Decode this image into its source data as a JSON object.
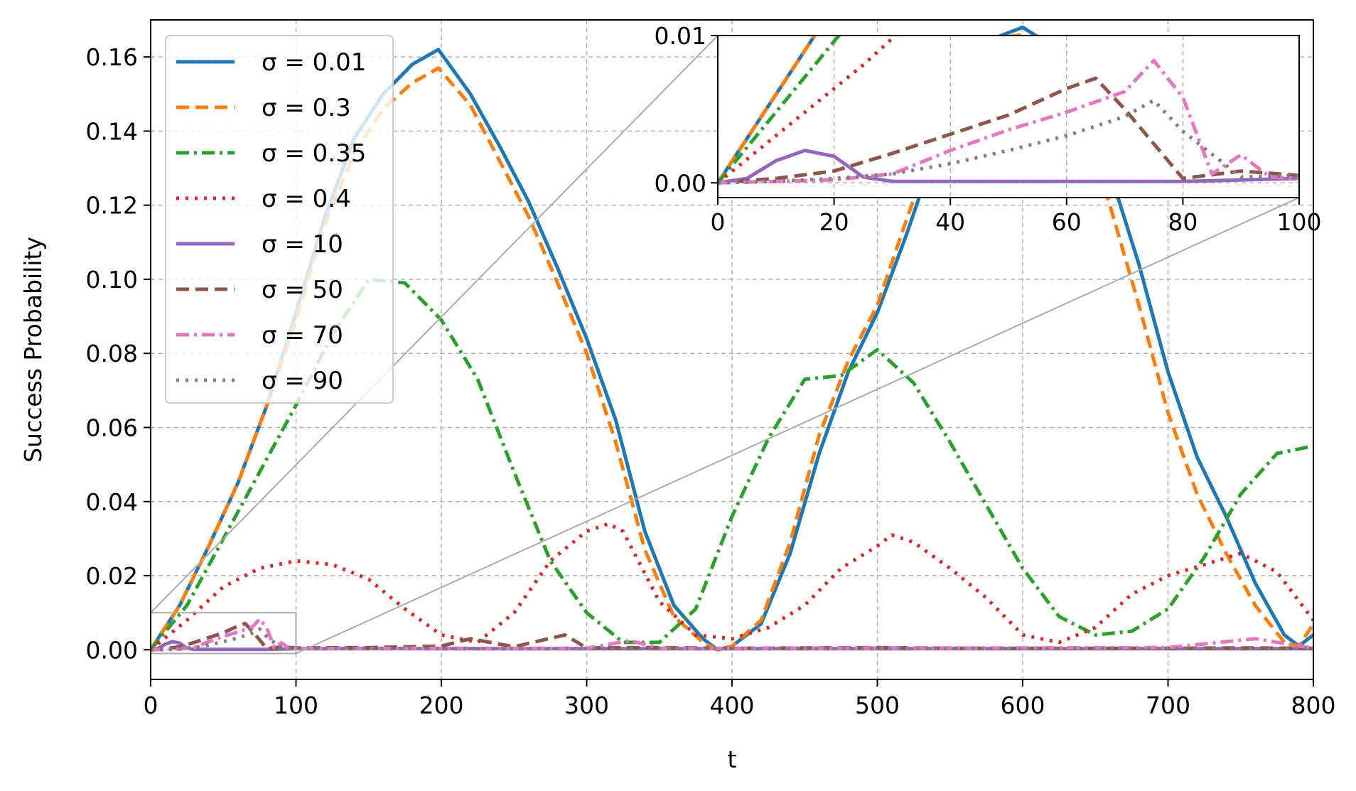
{
  "chart_data": {
    "type": "line",
    "xlabel": "t",
    "ylabel": "Success Probability",
    "xlim": [
      0,
      800
    ],
    "ylim": [
      -0.008,
      0.17
    ],
    "xticks": [
      "0",
      "100",
      "200",
      "300",
      "400",
      "500",
      "600",
      "700",
      "800"
    ],
    "yticks": [
      "0.00",
      "0.02",
      "0.04",
      "0.06",
      "0.08",
      "0.10",
      "0.12",
      "0.14",
      "0.16"
    ],
    "grid": true,
    "legend_position": "upper-left",
    "series": [
      {
        "name": "σ = 0.01",
        "color": "#1f77b4",
        "style": "solid",
        "x": [
          0,
          20,
          40,
          60,
          80,
          100,
          120,
          140,
          160,
          180,
          198,
          220,
          240,
          260,
          280,
          300,
          320,
          340,
          360,
          380,
          390,
          400,
          420,
          440,
          460,
          480,
          500,
          520,
          540,
          560,
          580,
          600,
          620,
          640,
          660,
          680,
          700,
          720,
          740,
          760,
          780,
          790,
          800
        ],
        "y": [
          0.0,
          0.012,
          0.028,
          0.045,
          0.066,
          0.091,
          0.117,
          0.138,
          0.15,
          0.158,
          0.162,
          0.15,
          0.136,
          0.121,
          0.103,
          0.084,
          0.062,
          0.032,
          0.012,
          0.003,
          0.0,
          0.001,
          0.007,
          0.026,
          0.053,
          0.075,
          0.091,
          0.112,
          0.135,
          0.152,
          0.165,
          0.168,
          0.163,
          0.149,
          0.129,
          0.104,
          0.075,
          0.052,
          0.036,
          0.018,
          0.004,
          0.001,
          0.004
        ]
      },
      {
        "name": "σ = 0.3",
        "color": "#ff7f0e",
        "style": "dashed",
        "x": [
          0,
          20,
          40,
          60,
          80,
          100,
          120,
          140,
          160,
          180,
          198,
          220,
          240,
          260,
          280,
          300,
          320,
          340,
          360,
          380,
          390,
          400,
          420,
          440,
          460,
          480,
          500,
          520,
          540,
          560,
          580,
          600,
          620,
          640,
          660,
          680,
          700,
          720,
          740,
          760,
          780,
          790,
          800
        ],
        "y": [
          0.0,
          0.012,
          0.028,
          0.045,
          0.066,
          0.089,
          0.115,
          0.134,
          0.146,
          0.153,
          0.157,
          0.147,
          0.132,
          0.117,
          0.099,
          0.08,
          0.056,
          0.027,
          0.009,
          0.002,
          0.0,
          0.001,
          0.008,
          0.029,
          0.058,
          0.078,
          0.093,
          0.116,
          0.138,
          0.154,
          0.165,
          0.166,
          0.159,
          0.144,
          0.12,
          0.093,
          0.064,
          0.042,
          0.026,
          0.012,
          0.002,
          0.001,
          0.007
        ]
      },
      {
        "name": "σ = 0.35",
        "color": "#2ca02c",
        "style": "dashdot",
        "x": [
          0,
          25,
          50,
          75,
          100,
          125,
          150,
          175,
          200,
          225,
          250,
          275,
          300,
          325,
          350,
          375,
          400,
          425,
          450,
          475,
          500,
          525,
          550,
          575,
          600,
          625,
          650,
          675,
          700,
          725,
          750,
          775,
          800
        ],
        "y": [
          0.0,
          0.012,
          0.03,
          0.048,
          0.066,
          0.085,
          0.1,
          0.099,
          0.089,
          0.073,
          0.048,
          0.024,
          0.01,
          0.002,
          0.002,
          0.011,
          0.036,
          0.057,
          0.073,
          0.074,
          0.081,
          0.072,
          0.056,
          0.039,
          0.022,
          0.009,
          0.004,
          0.005,
          0.011,
          0.025,
          0.042,
          0.053,
          0.055
        ]
      },
      {
        "name": "σ = 0.4",
        "color": "#d62728",
        "style": "dotted",
        "x": [
          0,
          25,
          50,
          75,
          100,
          125,
          150,
          175,
          200,
          225,
          250,
          275,
          300,
          315,
          325,
          350,
          375,
          400,
          425,
          450,
          475,
          500,
          510,
          525,
          550,
          575,
          600,
          625,
          650,
          675,
          700,
          725,
          750,
          775,
          800
        ],
        "y": [
          0.0,
          0.008,
          0.017,
          0.022,
          0.024,
          0.023,
          0.019,
          0.011,
          0.004,
          0.002,
          0.01,
          0.024,
          0.032,
          0.034,
          0.032,
          0.013,
          0.004,
          0.003,
          0.006,
          0.012,
          0.022,
          0.028,
          0.031,
          0.029,
          0.022,
          0.014,
          0.004,
          0.002,
          0.006,
          0.015,
          0.02,
          0.023,
          0.026,
          0.021,
          0.008
        ]
      },
      {
        "name": "σ = 10",
        "color": "#9467bd",
        "style": "solid",
        "x": [
          0,
          5,
          10,
          15,
          20,
          25,
          30,
          40,
          60,
          80,
          100,
          200,
          300,
          400,
          500,
          600,
          700,
          800
        ],
        "y": [
          0.0,
          0.0003,
          0.0015,
          0.0022,
          0.0018,
          0.0004,
          0.0001,
          0.0001,
          0.0001,
          0.0001,
          0.0003,
          0.0003,
          0.0003,
          0.0003,
          0.0003,
          0.0003,
          0.0003,
          0.0003
        ]
      },
      {
        "name": "σ = 50",
        "color": "#8c564b",
        "style": "dashed",
        "x": [
          0,
          10,
          20,
          30,
          40,
          50,
          60,
          65,
          70,
          80,
          90,
          100,
          150,
          200,
          220,
          250,
          285,
          300,
          350,
          400,
          450,
          500,
          550,
          600,
          650,
          700,
          750,
          800
        ],
        "y": [
          0.0,
          0.0003,
          0.0008,
          0.002,
          0.0033,
          0.0046,
          0.0064,
          0.0071,
          0.005,
          0.0003,
          0.0008,
          0.0005,
          0.0006,
          0.001,
          0.003,
          0.0008,
          0.004,
          0.0005,
          0.0006,
          0.0004,
          0.0005,
          0.0006,
          0.0004,
          0.0004,
          0.0004,
          0.0004,
          0.0005,
          0.0004
        ]
      },
      {
        "name": "σ = 70",
        "color": "#e377c2",
        "style": "dashdot",
        "x": [
          0,
          10,
          20,
          30,
          40,
          50,
          60,
          70,
          75,
          80,
          85,
          90,
          95,
          100,
          200,
          300,
          330,
          350,
          400,
          500,
          600,
          700,
          760,
          800
        ],
        "y": [
          0.0,
          0.0001,
          0.0002,
          0.0006,
          0.0022,
          0.0036,
          0.0048,
          0.0062,
          0.0083,
          0.0058,
          0.0006,
          0.0019,
          0.0004,
          0.0003,
          0.0004,
          0.0004,
          0.0025,
          0.0004,
          0.0004,
          0.0005,
          0.0005,
          0.0006,
          0.003,
          0.0004
        ]
      },
      {
        "name": "σ = 90",
        "color": "#7f7f7f",
        "style": "dotted",
        "x": [
          0,
          10,
          20,
          30,
          40,
          50,
          60,
          70,
          75,
          80,
          90,
          100,
          200,
          300,
          400,
          500,
          600,
          700,
          800
        ],
        "y": [
          0.0,
          0.0001,
          0.0003,
          0.0006,
          0.0013,
          0.0022,
          0.0032,
          0.0045,
          0.0056,
          0.0035,
          0.0004,
          0.0005,
          0.0003,
          0.0003,
          0.0003,
          0.0003,
          0.0003,
          0.0003,
          0.0003
        ]
      }
    ],
    "inset": {
      "xlim": [
        0,
        100
      ],
      "ylim": [
        -0.001,
        0.01
      ],
      "xticks": [
        "0",
        "20",
        "40",
        "60",
        "80",
        "100"
      ],
      "yticks": [
        "0.00",
        "0.01"
      ]
    }
  }
}
